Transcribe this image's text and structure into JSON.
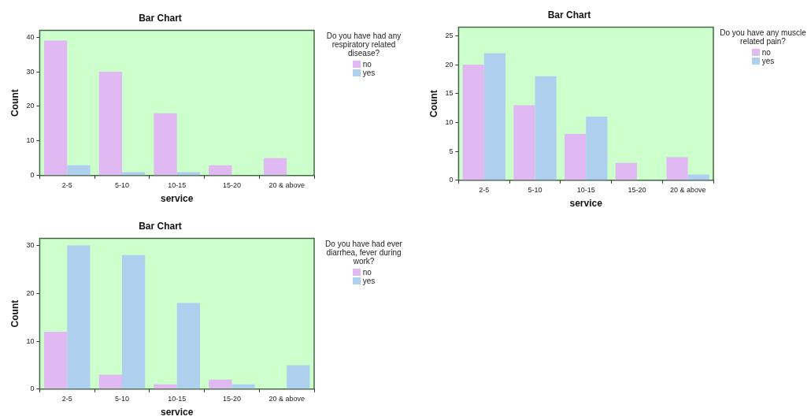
{
  "chart_data": [
    {
      "type": "bar",
      "title": "Bar Chart",
      "xlabel": "service",
      "ylabel": "Count",
      "legend_title": "Do you have had any respiratory related disease?",
      "legend": "right",
      "grid": false,
      "categories": [
        "2-5",
        "5-10",
        "10-15",
        "15-20",
        "20 & above"
      ],
      "ylim": [
        0,
        42
      ],
      "yticks": [
        0,
        10,
        20,
        30,
        40
      ],
      "series": [
        {
          "name": "no",
          "color": "#e0b8f2",
          "values": [
            39,
            30,
            18,
            3,
            5
          ]
        },
        {
          "name": "yes",
          "color": "#aed0ee",
          "values": [
            3,
            1,
            1,
            0,
            0
          ]
        }
      ]
    },
    {
      "type": "bar",
      "title": "Bar Chart",
      "xlabel": "service",
      "ylabel": "Count",
      "legend_title": "Do you have any muscle related pain?",
      "legend": "right",
      "grid": false,
      "categories": [
        "2-5",
        "5-10",
        "10-15",
        "15-20",
        "20 & above"
      ],
      "ylim": [
        0,
        26.5
      ],
      "yticks": [
        0,
        5,
        10,
        15,
        20,
        25
      ],
      "series": [
        {
          "name": "no",
          "color": "#e0b8f2",
          "values": [
            20,
            13,
            8,
            3,
            4
          ]
        },
        {
          "name": "yes",
          "color": "#aed0ee",
          "values": [
            22,
            18,
            11,
            0,
            1
          ]
        }
      ]
    },
    {
      "type": "bar",
      "title": "Bar Chart",
      "xlabel": "service",
      "ylabel": "Count",
      "legend_title": "Do you have had ever diarrhea, fever during work?",
      "legend": "right",
      "grid": false,
      "categories": [
        "2-5",
        "5-10",
        "10-15",
        "15-20",
        "20 & above"
      ],
      "ylim": [
        0,
        31.5
      ],
      "yticks": [
        0,
        10,
        20,
        30
      ],
      "series": [
        {
          "name": "no",
          "color": "#e0b8f2",
          "values": [
            12,
            3,
            1,
            2,
            0
          ]
        },
        {
          "name": "yes",
          "color": "#aed0ee",
          "values": [
            30,
            28,
            18,
            1,
            5
          ]
        }
      ]
    }
  ]
}
